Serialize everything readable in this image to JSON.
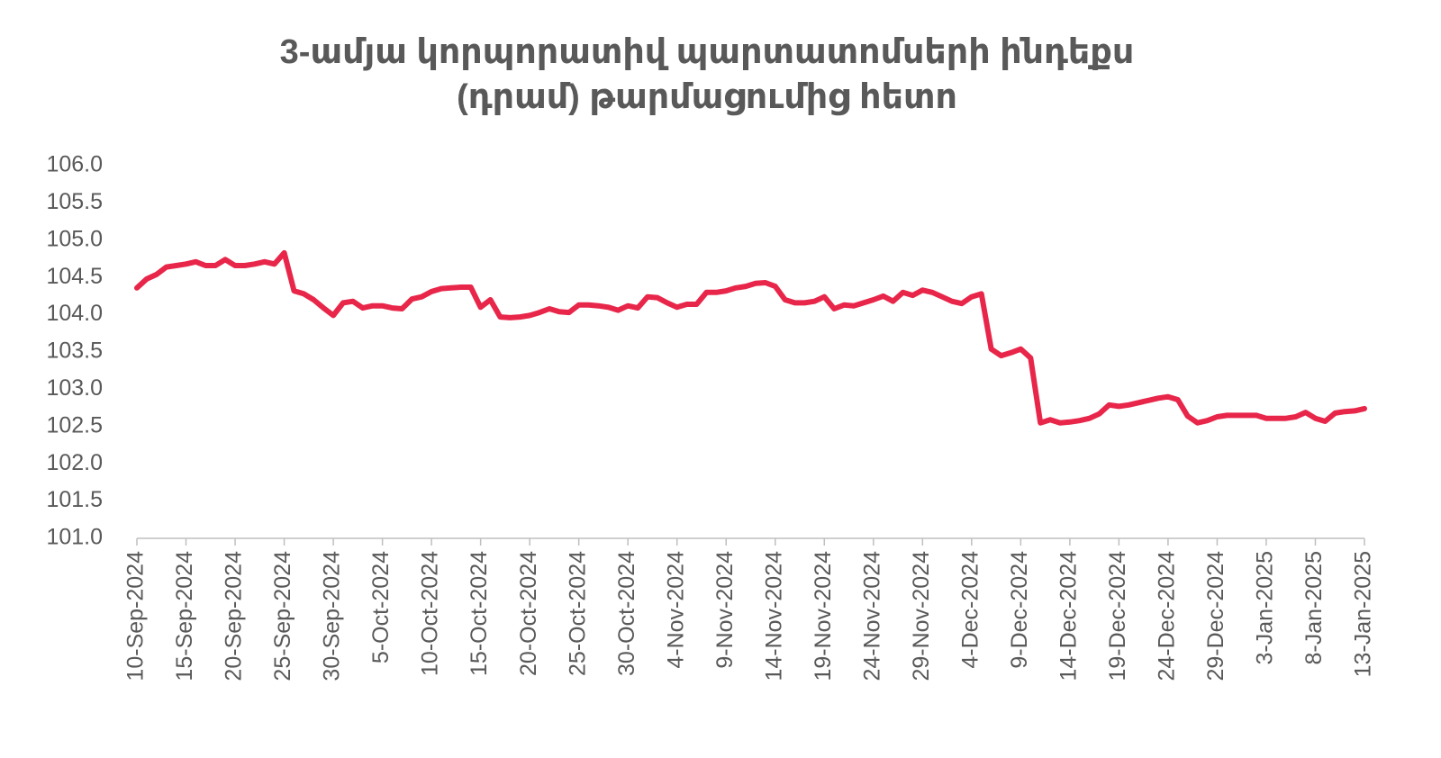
{
  "chart_data": {
    "type": "line",
    "title": [
      "3-ամյա կորպորատիվ պարտատոմսերի ինդեքս",
      "(դրամ) թարմացումից հետո"
    ],
    "categories": [
      "10-Sep-2024",
      null,
      null,
      null,
      null,
      "15-Sep-2024",
      null,
      null,
      null,
      null,
      "20-Sep-2024",
      null,
      null,
      null,
      null,
      "25-Sep-2024",
      null,
      null,
      null,
      null,
      "30-Sep-2024",
      null,
      null,
      null,
      null,
      "5-Oct-2024",
      null,
      null,
      null,
      null,
      "10-Oct-2024",
      null,
      null,
      null,
      null,
      "15-Oct-2024",
      null,
      null,
      null,
      null,
      "20-Oct-2024",
      null,
      null,
      null,
      null,
      "25-Oct-2024",
      null,
      null,
      null,
      null,
      "30-Oct-2024",
      null,
      null,
      null,
      null,
      "4-Nov-2024",
      null,
      null,
      null,
      null,
      "9-Nov-2024",
      null,
      null,
      null,
      null,
      "14-Nov-2024",
      null,
      null,
      null,
      null,
      "19-Nov-2024",
      null,
      null,
      null,
      null,
      "24-Nov-2024",
      null,
      null,
      null,
      null,
      "29-Nov-2024",
      null,
      null,
      null,
      null,
      "4-Dec-2024",
      null,
      null,
      null,
      null,
      "9-Dec-2024",
      null,
      null,
      null,
      null,
      "14-Dec-2024",
      null,
      null,
      null,
      null,
      "19-Dec-2024",
      null,
      null,
      null,
      null,
      "24-Dec-2024",
      null,
      null,
      null,
      null,
      "29-Dec-2024",
      null,
      null,
      null,
      null,
      "3-Jan-2025",
      null,
      null,
      null,
      null,
      "8-Jan-2025",
      null,
      null,
      null,
      null,
      "13-Jan-2025"
    ],
    "values": [
      104.36,
      104.48,
      104.54,
      104.64,
      104.66,
      104.68,
      104.71,
      104.66,
      104.66,
      104.74,
      104.66,
      104.66,
      104.68,
      104.71,
      104.68,
      104.83,
      104.32,
      104.28,
      104.2,
      104.09,
      103.99,
      104.16,
      104.18,
      104.09,
      104.12,
      104.12,
      104.09,
      104.08,
      104.21,
      104.24,
      104.31,
      104.35,
      104.36,
      104.37,
      104.37,
      104.1,
      104.2,
      103.97,
      103.96,
      103.97,
      103.99,
      104.03,
      104.08,
      104.04,
      104.03,
      104.13,
      104.13,
      104.12,
      104.1,
      104.06,
      104.12,
      104.09,
      104.24,
      104.23,
      104.16,
      104.1,
      104.14,
      104.14,
      104.3,
      104.3,
      104.32,
      104.36,
      104.38,
      104.42,
      104.43,
      104.38,
      104.2,
      104.16,
      104.16,
      104.18,
      104.24,
      104.08,
      104.13,
      104.12,
      104.16,
      104.2,
      104.25,
      104.18,
      104.3,
      104.26,
      104.33,
      104.3,
      104.24,
      104.18,
      104.15,
      104.24,
      104.28,
      103.54,
      103.45,
      103.49,
      103.54,
      103.42,
      102.55,
      102.59,
      102.55,
      102.56,
      102.58,
      102.61,
      102.67,
      102.79,
      102.77,
      102.79,
      102.82,
      102.85,
      102.88,
      102.9,
      102.86,
      102.64,
      102.55,
      102.58,
      102.63,
      102.65,
      102.65,
      102.65,
      102.65,
      102.61,
      102.61,
      102.61,
      102.63,
      102.69,
      102.61,
      102.57,
      102.68,
      102.7,
      102.71,
      102.74
    ],
    "color": "#e8264a",
    "ylim": [
      101,
      106
    ],
    "yticks": [
      {
        "value": 101,
        "label": "101.0"
      },
      {
        "value": 101.5,
        "label": "101.5"
      },
      {
        "value": 102,
        "label": "102.0"
      },
      {
        "value": 102.5,
        "label": "102.5"
      },
      {
        "value": 103,
        "label": "103.0"
      },
      {
        "value": 103.5,
        "label": "103.5"
      },
      {
        "value": 104,
        "label": "104.0"
      },
      {
        "value": 104.5,
        "label": "104.5"
      },
      {
        "value": 105,
        "label": "105.0"
      },
      {
        "value": 105.5,
        "label": "105.5"
      },
      {
        "value": 106,
        "label": "106.0"
      }
    ],
    "grid": false
  }
}
